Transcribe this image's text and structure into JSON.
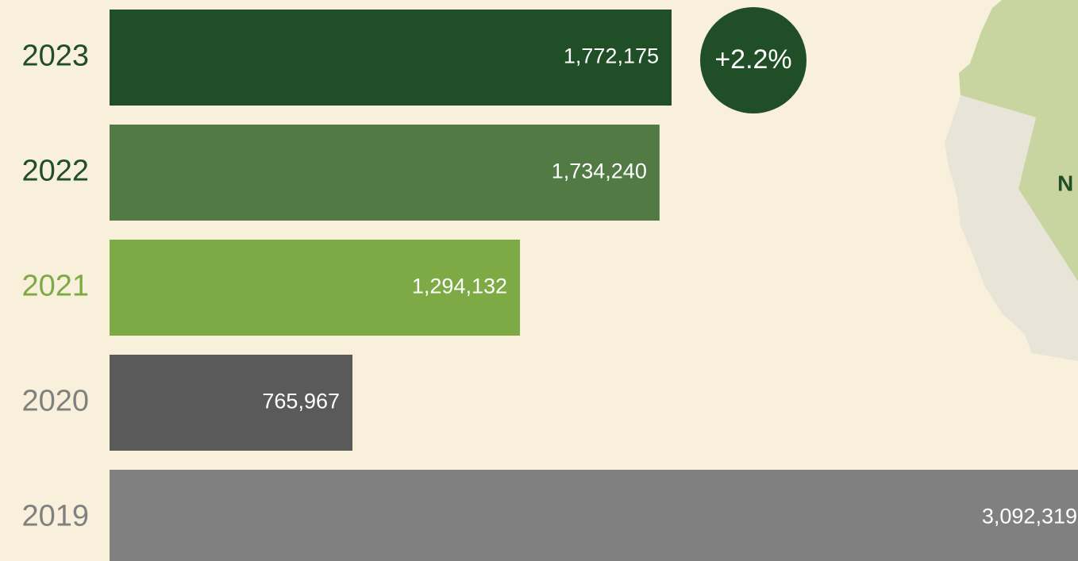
{
  "chart_data": {
    "type": "bar",
    "orientation": "horizontal",
    "categories": [
      "2023",
      "2022",
      "2021",
      "2020",
      "2019"
    ],
    "values": [
      1772175,
      1734240,
      1294132,
      765967,
      3092319
    ],
    "value_labels": [
      "1,772,175",
      "1,734,240",
      "1,294,132",
      "765,967",
      "3,092,319"
    ],
    "colors": [
      "#1f4e27",
      "#527a44",
      "#7daa45",
      "#5a5a5a",
      "#808080"
    ],
    "label_colors": [
      "#1f4e27",
      "#1f4e27",
      "#7daa45",
      "#808080",
      "#808080"
    ],
    "annotation": {
      "text": "+2.2%",
      "color": "#1f4e27"
    },
    "map_label": "N"
  }
}
